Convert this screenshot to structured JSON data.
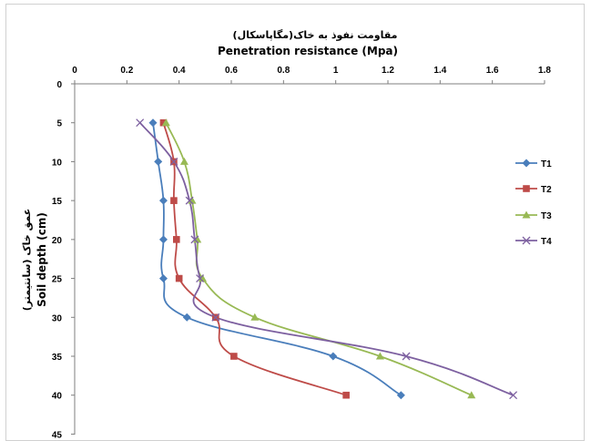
{
  "chart_data": {
    "type": "line",
    "title_fa": "مقاومت نفوذ به خاک(مگاپاسکال)",
    "title_en": "Penetration resistance (Mpa)",
    "ylabel_en": "Soil depth (cm)",
    "ylabel_fa": "عمق خاک (سانتیمتر)",
    "x_axis_position": "top",
    "xlim": [
      0,
      1.8
    ],
    "x_ticks": [
      "0",
      "0.2",
      "0.4",
      "0.6",
      "0.8",
      "1",
      "1.2",
      "1.4",
      "1.6",
      "1.8"
    ],
    "ylim": [
      0,
      45
    ],
    "y_reversed": true,
    "y_ticks": [
      "0",
      "5",
      "10",
      "15",
      "20",
      "25",
      "30",
      "35",
      "40",
      "45"
    ],
    "grid": false,
    "legend_position": "right",
    "depth": [
      5,
      10,
      15,
      20,
      25,
      30,
      35,
      40
    ],
    "series": [
      {
        "name": "T1",
        "color": "#4a7ebb",
        "marker": "diamond",
        "values": [
          0.3,
          0.32,
          0.34,
          0.34,
          0.34,
          0.43,
          0.99,
          1.25
        ]
      },
      {
        "name": "T2",
        "color": "#be4b48",
        "marker": "square",
        "values": [
          0.34,
          0.38,
          0.38,
          0.39,
          0.4,
          0.54,
          0.61,
          1.04
        ]
      },
      {
        "name": "T3",
        "color": "#98b954",
        "marker": "triangle",
        "values": [
          0.35,
          0.42,
          0.45,
          0.47,
          0.49,
          0.69,
          1.17,
          1.52
        ]
      },
      {
        "name": "T4",
        "color": "#7d60a0",
        "marker": "x",
        "values": [
          0.25,
          0.38,
          0.44,
          0.46,
          0.48,
          0.54,
          1.27,
          1.68
        ]
      }
    ]
  }
}
